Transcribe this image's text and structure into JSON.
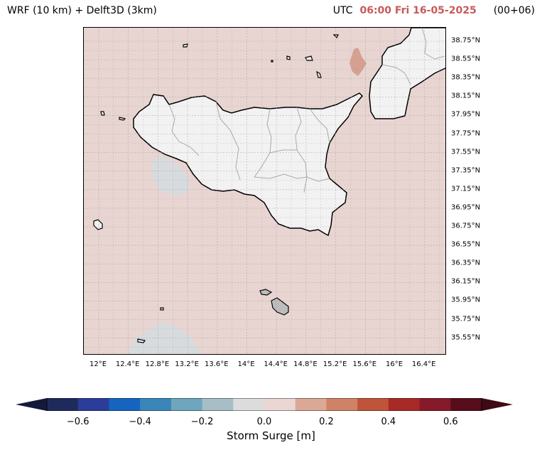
{
  "header": {
    "model_title": "WRF (10 km) + Delft3D (3km)",
    "utc_label": "UTC",
    "time": "06:00 Fri 16-05-2025",
    "forecast_step": "(00+06)"
  },
  "map": {
    "region": "Sicily and Malta",
    "sea_color": "#e8d5d2",
    "land_color": "#f2f2f2",
    "lat_labels": [
      "38.75°N",
      "38.55°N",
      "38.35°N",
      "38.15°N",
      "37.95°N",
      "37.75°N",
      "37.55°N",
      "37.35°N",
      "37.15°N",
      "36.95°N",
      "36.75°N",
      "36.55°N",
      "36.35°N",
      "36.15°N",
      "35.95°N",
      "35.75°N",
      "35.55°N"
    ],
    "lon_labels": [
      "12°E",
      "12.4°E",
      "12.8°E",
      "13.2°E",
      "13.6°E",
      "14°E",
      "14.4°E",
      "14.8°E",
      "15.2°E",
      "15.6°E",
      "16°E",
      "16.4°E"
    ],
    "gridlines": true
  },
  "colorbar": {
    "label": "Storm Surge [m]",
    "ticks": [
      "−0.6",
      "−0.4",
      "−0.2",
      "0.0",
      "0.2",
      "0.4",
      "0.6"
    ],
    "levels": [
      -0.7,
      -0.6,
      -0.5,
      -0.4,
      -0.3,
      -0.2,
      -0.1,
      0.0,
      0.1,
      0.2,
      0.3,
      0.4,
      0.5,
      0.6,
      0.7
    ],
    "colors": [
      "#1f2a5c",
      "#2b3d99",
      "#1565c0",
      "#3b86b8",
      "#6ea6bd",
      "#a7bec7",
      "#dcdcdc",
      "#ead6d3",
      "#dca896",
      "#cf8266",
      "#bf543b",
      "#a82a26",
      "#861a2a",
      "#570d1b"
    ],
    "extend_low_color": "#141a3c",
    "extend_high_color": "#3f0a14"
  }
}
